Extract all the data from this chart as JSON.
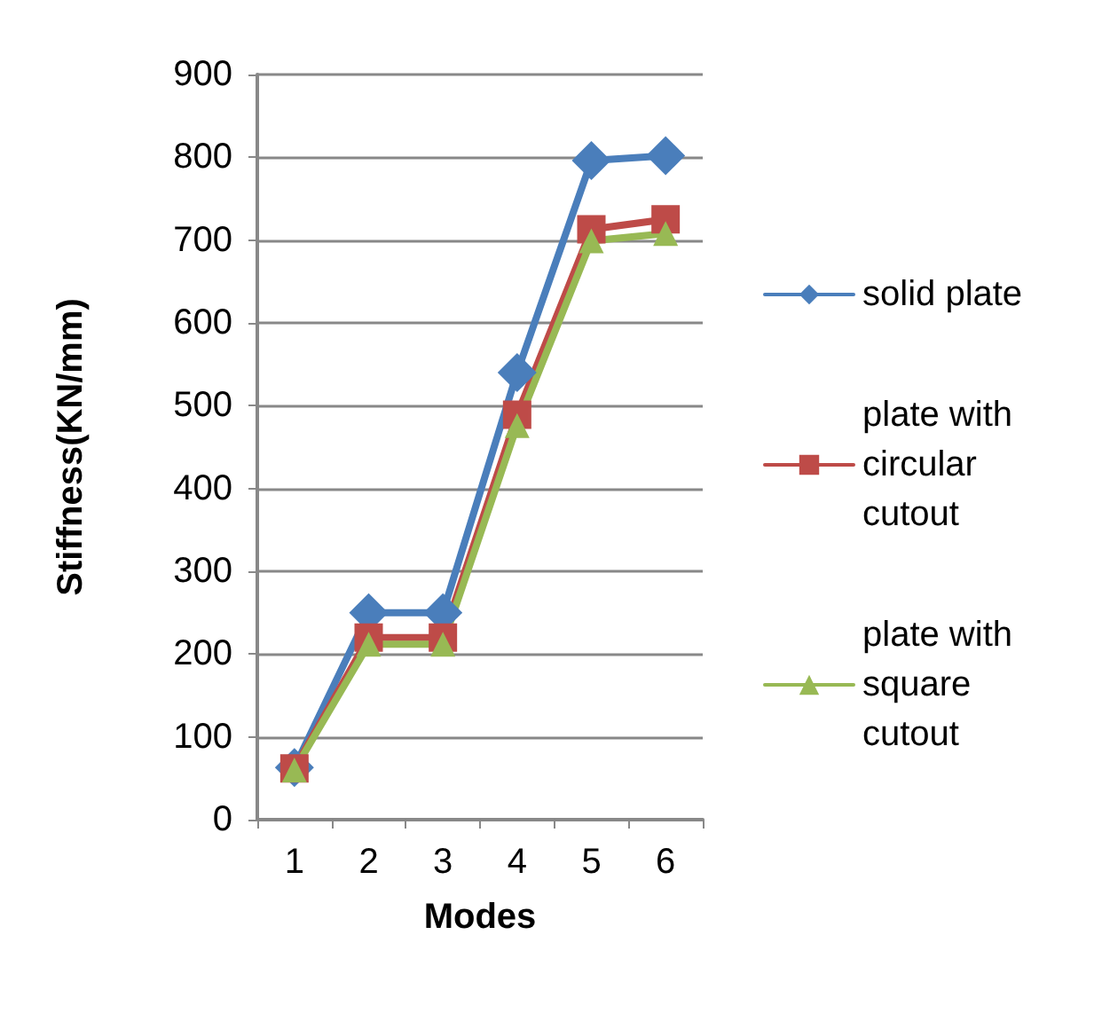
{
  "chart_data": {
    "type": "line",
    "xlabel": "Modes",
    "ylabel": "Stiffness(KN/mm)",
    "categories": [
      "1",
      "2",
      "3",
      "4",
      "5",
      "6"
    ],
    "series": [
      {
        "name": "solid plate",
        "color": "#4a7ebb",
        "marker": "diamond",
        "values": [
          63,
          250,
          250,
          540,
          796,
          802
        ]
      },
      {
        "name": "plate with circular cutout",
        "color": "#be4b48",
        "marker": "square",
        "values": [
          62,
          220,
          220,
          489,
          713,
          725
        ]
      },
      {
        "name": "plate with square cutout",
        "color": "#98b954",
        "marker": "triangle",
        "values": [
          60,
          212,
          212,
          476,
          699,
          708
        ]
      }
    ],
    "ylim": [
      0,
      900
    ],
    "yticks": [
      0,
      100,
      200,
      300,
      400,
      500,
      600,
      700,
      800,
      900
    ],
    "grid": "y",
    "legend": "right"
  }
}
